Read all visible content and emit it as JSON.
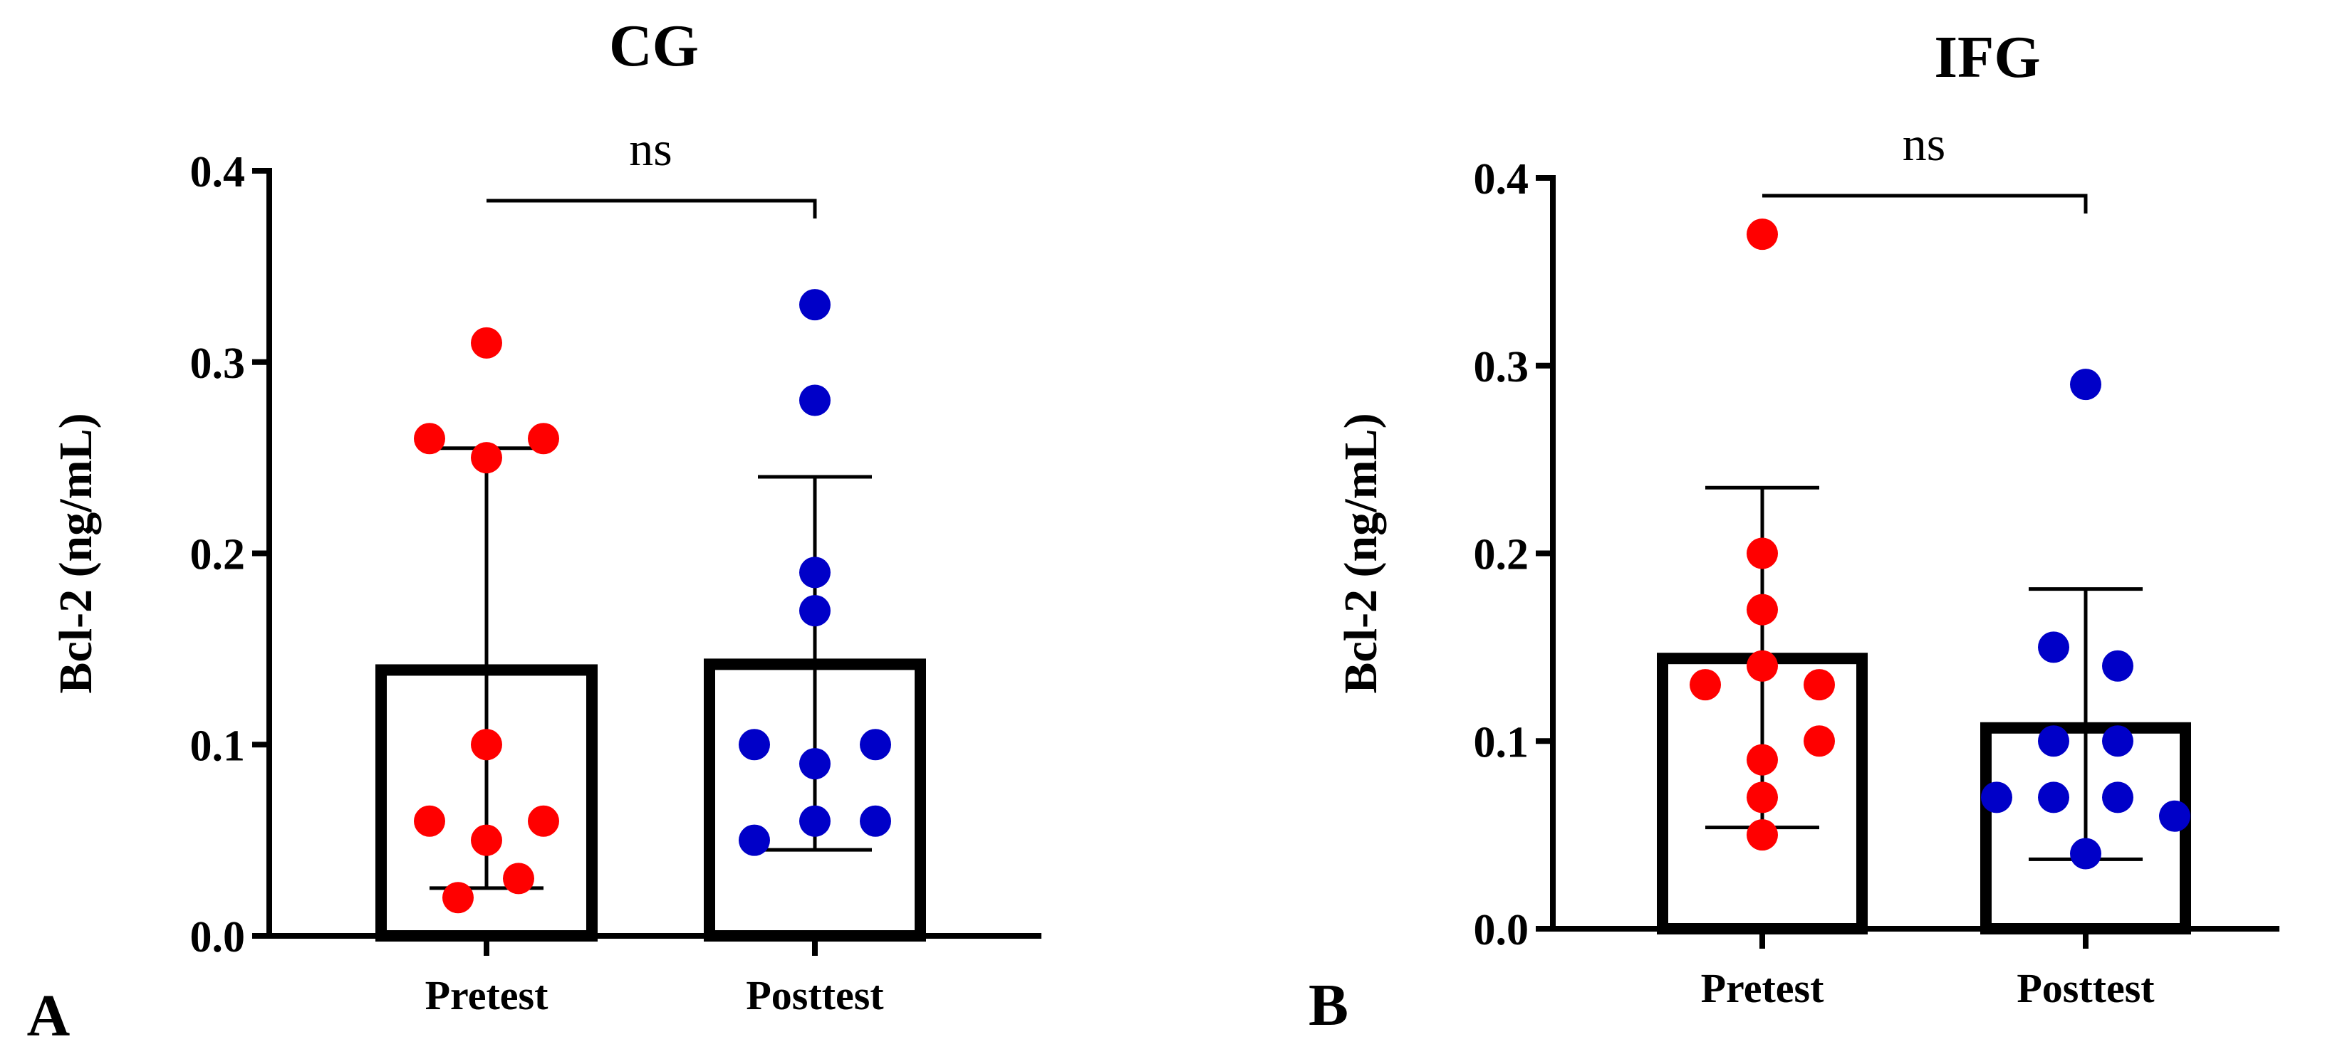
{
  "chart_data": [
    {
      "type": "bar",
      "panel_label": "A",
      "title": "CG",
      "xlabel": "",
      "ylabel": "Bcl-2 (ng/mL)",
      "ylim": [
        0,
        0.4
      ],
      "yticks": [
        0.0,
        0.1,
        0.2,
        0.3,
        0.4
      ],
      "ytick_labels": [
        "0.0",
        "0.1",
        "0.2",
        "0.3",
        "0.4"
      ],
      "categories": [
        "Pretest",
        "Posttest"
      ],
      "values": [
        0.139,
        0.142
      ],
      "errors": [
        {
          "low": 0.025,
          "high": 0.255
        },
        {
          "low": 0.045,
          "high": 0.24
        }
      ],
      "points": [
        {
          "category": "Pretest",
          "color": "#ff0000",
          "values": [
            0.31,
            0.26,
            0.25,
            0.26,
            0.1,
            0.06,
            0.05,
            0.06,
            0.03,
            0.02
          ]
        },
        {
          "category": "Posttest",
          "color": "#0000c8",
          "values": [
            0.33,
            0.28,
            0.19,
            0.17,
            0.1,
            0.09,
            0.1,
            0.05,
            0.06,
            0.06
          ]
        }
      ],
      "comparison": {
        "label": "ns",
        "between": [
          "Pretest",
          "Posttest"
        ]
      },
      "grid": false
    },
    {
      "type": "bar",
      "panel_label": "B",
      "title": "IFG",
      "xlabel": "",
      "ylabel": "Bcl-2 (ng/mL)",
      "ylim": [
        0,
        0.4
      ],
      "yticks": [
        0.0,
        0.1,
        0.2,
        0.3,
        0.4
      ],
      "ytick_labels": [
        "0.0",
        "0.1",
        "0.2",
        "0.3",
        "0.4"
      ],
      "categories": [
        "Pretest",
        "Posttest"
      ],
      "values": [
        0.144,
        0.107
      ],
      "errors": [
        {
          "low": 0.054,
          "high": 0.235
        },
        {
          "low": 0.037,
          "high": 0.181
        }
      ],
      "points": [
        {
          "category": "Pretest",
          "color": "#ff0000",
          "values": [
            0.37,
            0.2,
            0.17,
            0.14,
            0.13,
            0.13,
            0.1,
            0.09,
            0.07,
            0.05
          ]
        },
        {
          "category": "Posttest",
          "color": "#0000c8",
          "values": [
            0.29,
            0.15,
            0.14,
            0.1,
            0.1,
            0.07,
            0.07,
            0.07,
            0.06,
            0.04
          ]
        }
      ],
      "comparison": {
        "label": "ns",
        "between": [
          "Pretest",
          "Posttest"
        ]
      },
      "grid": false
    }
  ]
}
